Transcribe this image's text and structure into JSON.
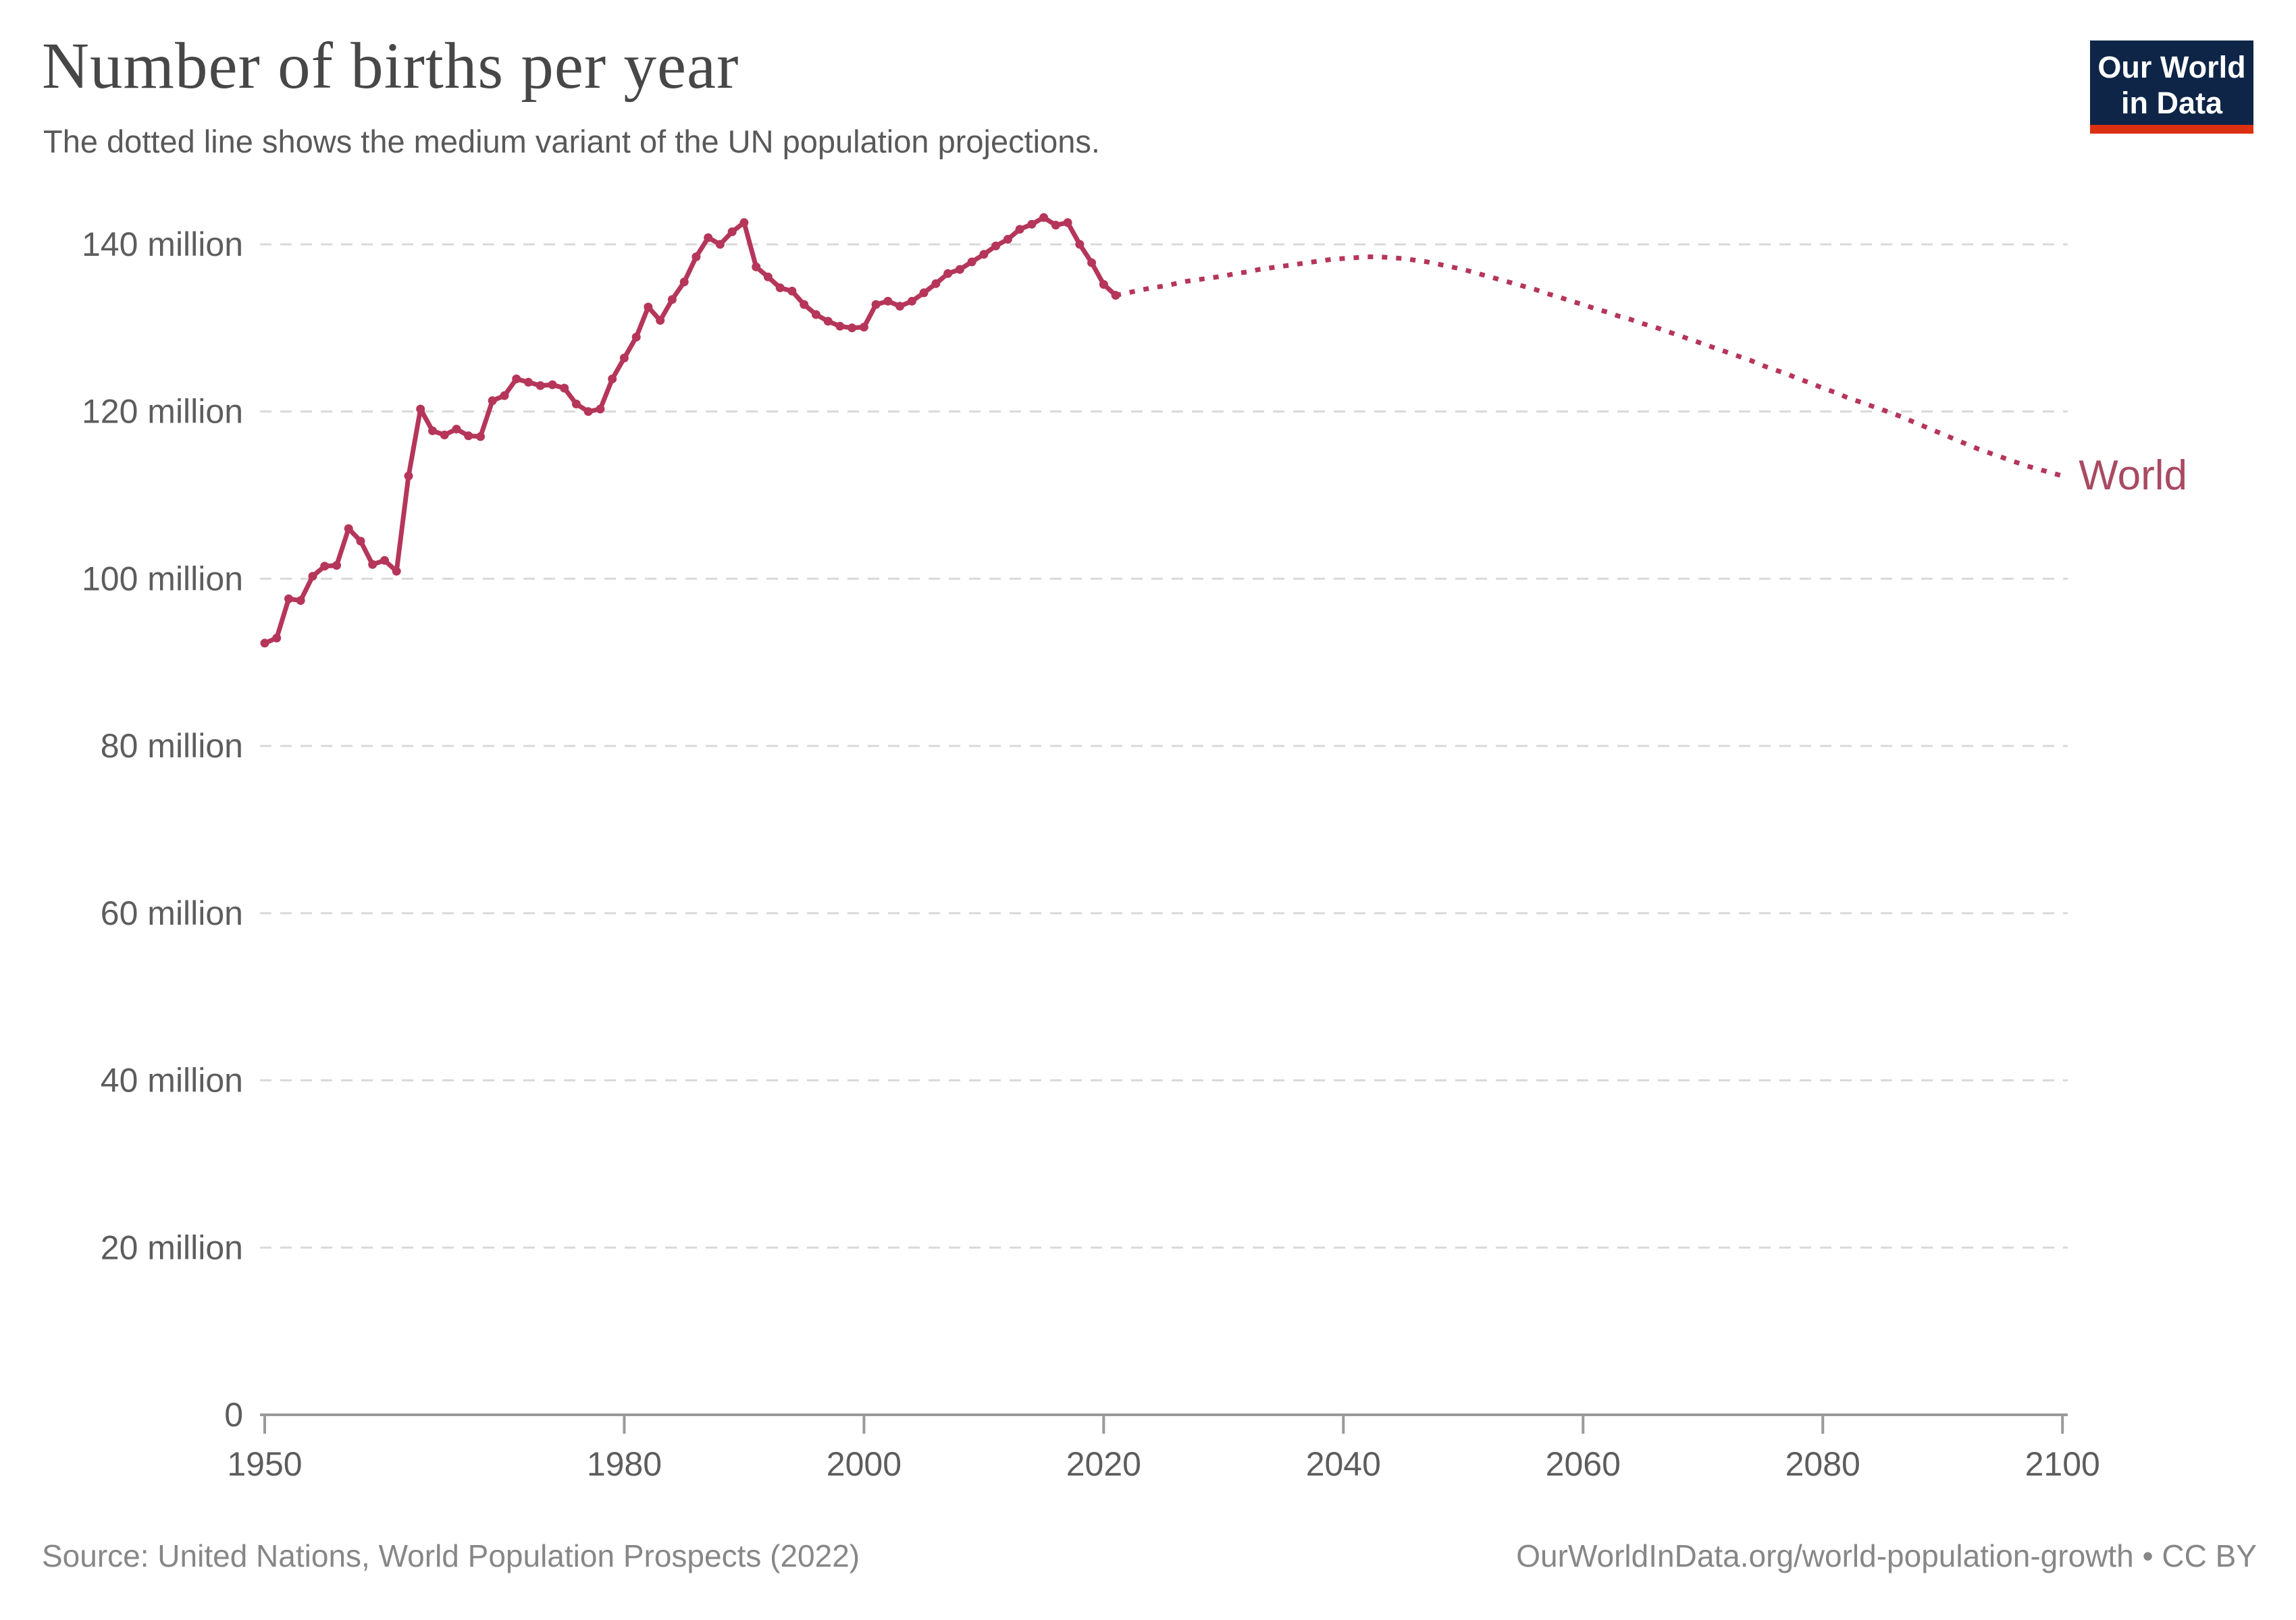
{
  "header": {
    "title": "Number of births per year",
    "subtitle": "The dotted line shows the medium variant of the UN population projections.",
    "logo": {
      "line1": "Our World",
      "line2": "in Data"
    },
    "logo_colors": {
      "background": "#0e2547",
      "underline": "#dc3012",
      "text": "#ffffff"
    }
  },
  "chart_data": {
    "type": "line",
    "title": "Number of births per year",
    "subtitle": "The dotted line shows the medium variant of the UN population projections.",
    "xlabel": "",
    "ylabel": "",
    "xlim": [
      1950,
      2100
    ],
    "ylim": [
      0,
      145
    ],
    "grid": true,
    "legend_position": "end-of-line",
    "end_label": "World",
    "line_color": "#b5365a",
    "end_label_color": "#a84a61",
    "grid_color": "#d9d9d9",
    "axis_color": "#9a9a9a",
    "tick_label_color": "#5d5d5d",
    "yticks": [
      {
        "value": 0,
        "label": "0"
      },
      {
        "value": 20,
        "label": "20 million"
      },
      {
        "value": 40,
        "label": "40 million"
      },
      {
        "value": 60,
        "label": "60 million"
      },
      {
        "value": 80,
        "label": "80 million"
      },
      {
        "value": 100,
        "label": "100 million"
      },
      {
        "value": 120,
        "label": "120 million"
      },
      {
        "value": 140,
        "label": "140 million"
      }
    ],
    "xticks": [
      1950,
      1980,
      2000,
      2020,
      2040,
      2060,
      2080,
      2100
    ],
    "series": [
      {
        "name": "World",
        "segment": "estimates",
        "style": "solid",
        "markers": true,
        "years": [
          1950,
          1951,
          1952,
          1953,
          1954,
          1955,
          1956,
          1957,
          1958,
          1959,
          1960,
          1961,
          1962,
          1963,
          1964,
          1965,
          1966,
          1967,
          1968,
          1969,
          1970,
          1971,
          1972,
          1973,
          1974,
          1975,
          1976,
          1977,
          1978,
          1979,
          1980,
          1981,
          1982,
          1983,
          1984,
          1985,
          1986,
          1987,
          1988,
          1989,
          1990,
          1991,
          1992,
          1993,
          1994,
          1995,
          1996,
          1997,
          1998,
          1999,
          2000,
          2001,
          2002,
          2003,
          2004,
          2005,
          2006,
          2007,
          2008,
          2009,
          2010,
          2011,
          2012,
          2013,
          2014,
          2015,
          2016,
          2017,
          2018,
          2019,
          2020,
          2021
        ],
        "values": [
          92.3,
          92.9,
          97.6,
          97.4,
          100.3,
          101.5,
          101.6,
          106.0,
          104.5,
          101.7,
          102.2,
          100.9,
          112.3,
          120.3,
          117.7,
          117.2,
          117.9,
          117.1,
          117.0,
          121.3,
          121.9,
          123.9,
          123.5,
          123.1,
          123.2,
          122.8,
          120.9,
          120.0,
          120.3,
          123.9,
          126.4,
          128.9,
          132.5,
          130.9,
          133.4,
          135.5,
          138.5,
          140.8,
          140.0,
          141.5,
          142.6,
          137.3,
          136.1,
          134.8,
          134.4,
          132.8,
          131.6,
          130.8,
          130.2,
          130.0,
          130.1,
          132.8,
          133.2,
          132.6,
          133.2,
          134.2,
          135.3,
          136.5,
          137.0,
          137.9,
          138.8,
          139.8,
          140.6,
          141.8,
          142.4,
          143.2,
          142.3,
          142.6,
          140.0,
          137.8,
          135.2,
          133.9
        ]
      },
      {
        "name": "World",
        "segment": "UN medium-variant projection",
        "style": "dotted",
        "markers": false,
        "years": [
          2021,
          2022,
          2023,
          2024,
          2025,
          2026,
          2027,
          2028,
          2029,
          2030,
          2031,
          2032,
          2033,
          2034,
          2035,
          2036,
          2037,
          2038,
          2039,
          2040,
          2041,
          2042,
          2043,
          2044,
          2045,
          2046,
          2047,
          2048,
          2049,
          2050,
          2051,
          2052,
          2053,
          2054,
          2055,
          2056,
          2057,
          2058,
          2059,
          2060,
          2061,
          2062,
          2063,
          2064,
          2065,
          2066,
          2067,
          2068,
          2069,
          2070,
          2071,
          2072,
          2073,
          2074,
          2075,
          2076,
          2077,
          2078,
          2079,
          2080,
          2081,
          2082,
          2083,
          2084,
          2085,
          2086,
          2087,
          2088,
          2089,
          2090,
          2091,
          2092,
          2093,
          2094,
          2095,
          2096,
          2097,
          2098,
          2099,
          2100
        ],
        "values": [
          133.9,
          134.2,
          134.5,
          134.8,
          135.0,
          135.3,
          135.6,
          135.8,
          136.0,
          136.2,
          136.5,
          136.7,
          137.0,
          137.2,
          137.4,
          137.6,
          137.8,
          138.0,
          138.2,
          138.3,
          138.4,
          138.5,
          138.5,
          138.4,
          138.3,
          138.1,
          137.9,
          137.6,
          137.3,
          137.0,
          136.6,
          136.2,
          135.8,
          135.4,
          135.0,
          134.6,
          134.1,
          133.7,
          133.2,
          132.8,
          132.3,
          131.9,
          131.4,
          131.0,
          130.5,
          130.1,
          129.6,
          129.1,
          128.6,
          128.1,
          127.6,
          127.1,
          126.6,
          126.1,
          125.5,
          125.0,
          124.5,
          123.9,
          123.4,
          122.8,
          122.3,
          121.7,
          121.2,
          120.7,
          120.2,
          119.7,
          119.1,
          118.5,
          117.9,
          117.3,
          116.7,
          116.1,
          115.5,
          115.0,
          114.5,
          114.0,
          113.5,
          113.1,
          112.7,
          112.3
        ]
      }
    ]
  },
  "footer": {
    "source": "Source: United Nations, World Population Prospects (2022)",
    "attribution": "OurWorldInData.org/world-population-growth • CC BY"
  }
}
